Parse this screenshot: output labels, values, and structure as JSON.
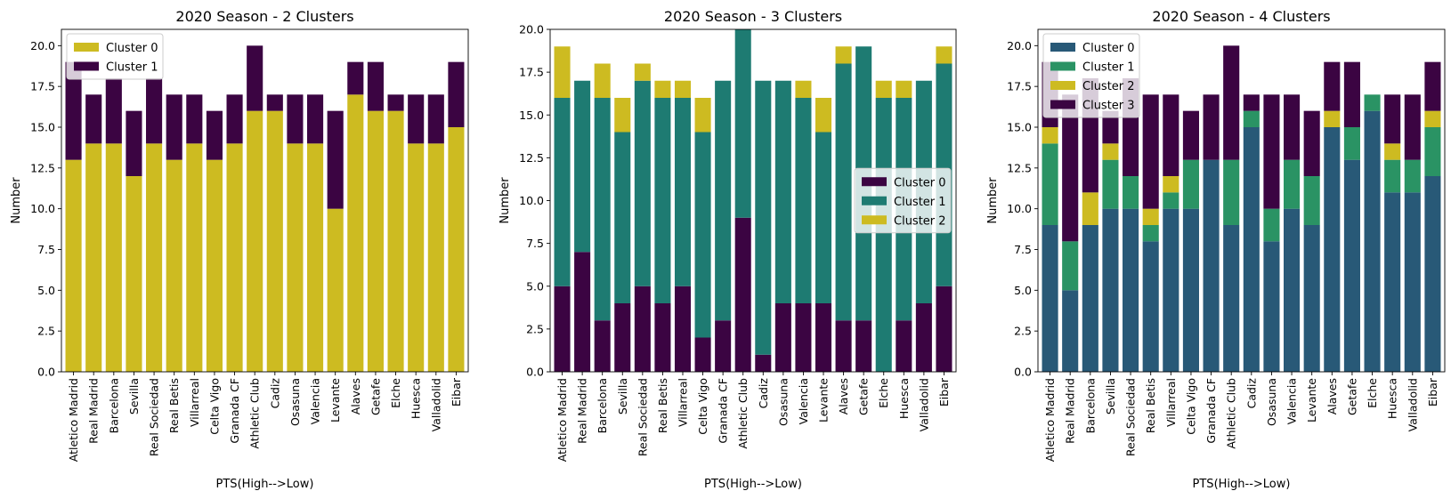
{
  "colors": {
    "purple": "#3b0442",
    "teal": "#1e7b72",
    "yellow": "#cdbb21",
    "blue": "#285977",
    "green": "#2a9364"
  },
  "chart_data": [
    {
      "type": "bar",
      "stacked": true,
      "title": "2020 Season - 2 Clusters",
      "xlabel": "PTS(High-->Low)",
      "ylabel": "Number",
      "ylim": [
        0,
        21
      ],
      "yticks": [
        "0.0",
        "2.5",
        "5.0",
        "7.5",
        "10.0",
        "12.5",
        "15.0",
        "17.5",
        "20.0"
      ],
      "legend_position": "upper-left",
      "categories": [
        "Atletico Madrid",
        "Real Madrid",
        "Barcelona",
        "Sevilla",
        "Real Sociedad",
        "Real Betis",
        "Villarreal",
        "Celta Vigo",
        "Granada CF",
        "Athletic Club",
        "Cadiz",
        "Osasuna",
        "Valencia",
        "Levante",
        "Alaves",
        "Getafe",
        "Elche",
        "Huesca",
        "Valladolid",
        "Eibar"
      ],
      "series": [
        {
          "name": "Cluster 0",
          "color": "#cdbb21",
          "values": [
            13,
            14,
            14,
            12,
            14,
            13,
            14,
            13,
            14,
            16,
            16,
            14,
            14,
            10,
            17,
            16,
            16,
            14,
            14,
            15
          ]
        },
        {
          "name": "Cluster 1",
          "color": "#3b0442",
          "values": [
            6,
            3,
            4,
            4,
            4,
            4,
            3,
            3,
            3,
            4,
            1,
            3,
            3,
            6,
            2,
            3,
            1,
            3,
            3,
            4
          ]
        }
      ]
    },
    {
      "type": "bar",
      "stacked": true,
      "title": "2020 Season - 3 Clusters",
      "xlabel": "PTS(High-->Low)",
      "ylabel": "Number",
      "ylim": [
        0,
        20
      ],
      "yticks": [
        "0.0",
        "2.5",
        "5.0",
        "7.5",
        "10.0",
        "12.5",
        "15.0",
        "17.5",
        "20.0"
      ],
      "legend_position": "center-right",
      "categories": [
        "Atletico Madrid",
        "Real Madrid",
        "Barcelona",
        "Sevilla",
        "Real Sociedad",
        "Real Betis",
        "Villarreal",
        "Celta Vigo",
        "Granada CF",
        "Athletic Club",
        "Cadiz",
        "Osasuna",
        "Valencia",
        "Levante",
        "Alaves",
        "Getafe",
        "Elche",
        "Huesca",
        "Valladolid",
        "Eibar"
      ],
      "series": [
        {
          "name": "Cluster 0",
          "color": "#3b0442",
          "values": [
            5,
            7,
            3,
            4,
            5,
            4,
            5,
            2,
            3,
            9,
            1,
            4,
            4,
            4,
            3,
            3,
            0,
            3,
            4,
            5
          ]
        },
        {
          "name": "Cluster 1",
          "color": "#1e7b72",
          "values": [
            11,
            10,
            13,
            10,
            12,
            12,
            11,
            12,
            14,
            11,
            16,
            13,
            12,
            10,
            15,
            16,
            16,
            13,
            13,
            13
          ]
        },
        {
          "name": "Cluster 2",
          "color": "#cdbb21",
          "values": [
            3,
            0,
            2,
            2,
            1,
            1,
            1,
            2,
            0,
            0,
            0,
            0,
            1,
            2,
            1,
            0,
            1,
            1,
            0,
            1
          ]
        }
      ]
    },
    {
      "type": "bar",
      "stacked": true,
      "title": "2020 Season - 4 Clusters",
      "xlabel": "PTS(High-->Low)",
      "ylabel": "Number",
      "ylim": [
        0,
        21
      ],
      "yticks": [
        "0.0",
        "2.5",
        "5.0",
        "7.5",
        "10.0",
        "12.5",
        "15.0",
        "17.5",
        "20.0"
      ],
      "legend_position": "upper-left",
      "categories": [
        "Atletico Madrid",
        "Real Madrid",
        "Barcelona",
        "Sevilla",
        "Real Sociedad",
        "Real Betis",
        "Villarreal",
        "Celta Vigo",
        "Granada CF",
        "Athletic Club",
        "Cadiz",
        "Osasuna",
        "Valencia",
        "Levante",
        "Alaves",
        "Getafe",
        "Elche",
        "Huesca",
        "Valladolid",
        "Eibar"
      ],
      "series": [
        {
          "name": "Cluster 0",
          "color": "#285977",
          "values": [
            9,
            5,
            9,
            10,
            10,
            8,
            10,
            10,
            13,
            9,
            15,
            8,
            10,
            9,
            15,
            13,
            16,
            11,
            11,
            12
          ]
        },
        {
          "name": "Cluster 1",
          "color": "#2a9364",
          "values": [
            5,
            3,
            0,
            3,
            2,
            1,
            1,
            3,
            0,
            4,
            1,
            2,
            3,
            3,
            0,
            2,
            1,
            2,
            2,
            3
          ]
        },
        {
          "name": "Cluster 2",
          "color": "#cdbb21",
          "values": [
            1,
            0,
            2,
            1,
            0,
            1,
            1,
            0,
            0,
            0,
            0,
            0,
            0,
            0,
            1,
            0,
            0,
            1,
            0,
            1
          ]
        },
        {
          "name": "Cluster 3",
          "color": "#3b0442",
          "values": [
            4,
            9,
            7,
            2,
            6,
            7,
            5,
            3,
            4,
            7,
            1,
            7,
            4,
            4,
            3,
            4,
            0,
            3,
            4,
            3
          ]
        }
      ]
    }
  ]
}
